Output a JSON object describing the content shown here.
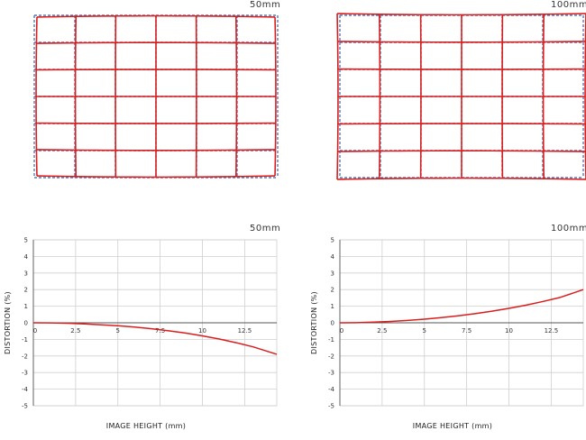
{
  "grid_panels": [
    {
      "focal": "50mm",
      "distortion": "barrel"
    },
    {
      "focal": "100mm",
      "distortion": "pincushion"
    }
  ],
  "colors": {
    "actual": "#d91e1e",
    "ideal": "#5a78b4",
    "grid": "#cfcfcf",
    "axis": "#555555"
  },
  "chart_data": [
    {
      "type": "line",
      "title": "50mm",
      "xlabel": "IMAGE HEIGHT (mm)",
      "ylabel": "DISTORTION (%)",
      "xlim": [
        0,
        14.4
      ],
      "ylim": [
        -5,
        5
      ],
      "x_ticks": [
        "0",
        "2.5",
        "5",
        "7.5",
        "10",
        "12.5"
      ],
      "y_ticks": [
        "5",
        "4",
        "3",
        "2",
        "1",
        "0",
        "-1",
        "-2",
        "-3",
        "-4",
        "-5"
      ],
      "grid": true,
      "series": [
        {
          "x": [
            0,
            1,
            2,
            3,
            4,
            5,
            6,
            7,
            8,
            9,
            10,
            11,
            12,
            13,
            14.4
          ],
          "values": [
            0,
            -0.01,
            -0.03,
            -0.07,
            -0.12,
            -0.18,
            -0.26,
            -0.36,
            -0.48,
            -0.62,
            -0.79,
            -0.98,
            -1.2,
            -1.45,
            -1.9
          ]
        }
      ]
    },
    {
      "type": "line",
      "title": "100mm",
      "xlabel": "IMAGE HEIGHT (mm)",
      "ylabel": "DISTORTION (%)",
      "xlim": [
        0,
        14.4
      ],
      "ylim": [
        -5,
        5
      ],
      "x_ticks": [
        "0",
        "2.5",
        "5",
        "7.5",
        "10",
        "12.5"
      ],
      "y_ticks": [
        "5",
        "4",
        "3",
        "2",
        "1",
        "0",
        "-1",
        "-2",
        "-3",
        "-4",
        "-5"
      ],
      "grid": true,
      "series": [
        {
          "x": [
            0,
            1,
            2,
            3,
            4,
            5,
            6,
            7,
            8,
            9,
            10,
            11,
            12,
            13,
            14.4
          ],
          "values": [
            0,
            0.01,
            0.04,
            0.08,
            0.14,
            0.22,
            0.31,
            0.42,
            0.55,
            0.7,
            0.87,
            1.06,
            1.28,
            1.52,
            2.0
          ]
        }
      ]
    }
  ]
}
